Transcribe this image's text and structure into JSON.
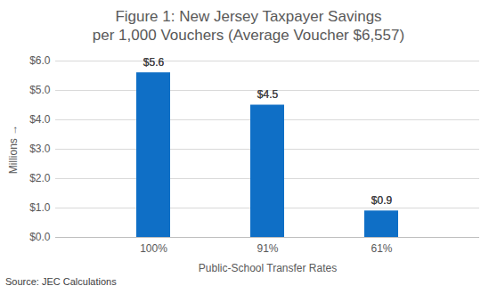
{
  "chart_data": {
    "type": "bar",
    "title": "Figure 1: New Jersey Taxpayer Savings\nper 1,000 Vouchers (Average Voucher $6,557)",
    "x_label": "Public-School Transfer Rates",
    "y_label": "Millions",
    "caption": "Source: JEC Calculations",
    "categories": [
      "100%",
      "91%",
      "61%"
    ],
    "values": [
      5.6,
      4.5,
      0.9
    ],
    "value_labels": [
      "$5.6",
      "$4.5",
      "$0.9"
    ],
    "data_labels": true,
    "color": "#0f6fc6",
    "ylim": [
      0,
      6
    ],
    "yticks": [
      {
        "value": 0,
        "label": "$0.0"
      },
      {
        "value": 1,
        "label": "$1.0"
      },
      {
        "value": 2,
        "label": "$2.0"
      },
      {
        "value": 3,
        "label": "$3.0"
      },
      {
        "value": 4,
        "label": "$4.0"
      },
      {
        "value": 5,
        "label": "$5.0"
      },
      {
        "value": 6,
        "label": "$6.0"
      }
    ],
    "grid": true
  }
}
